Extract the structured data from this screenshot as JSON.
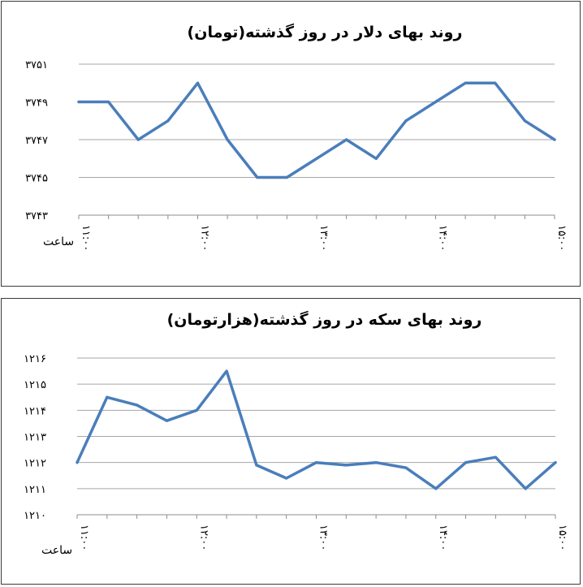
{
  "accent_color": "#4a7ebb",
  "chart_data": [
    {
      "type": "line",
      "title": "روند بهای دلار در روز گذشته(تومان)",
      "xlabel": "ساعت",
      "ylabel": "",
      "ylim": [
        3743,
        3751
      ],
      "yticks": [
        3743,
        3745,
        3747,
        3749,
        3751
      ],
      "ytick_labels": [
        "۳۷۴۳",
        "۳۷۴۵",
        "۳۷۴۷",
        "۳۷۴۹",
        "۳۷۵۱"
      ],
      "x": [
        "11:00",
        "11:15",
        "11:30",
        "11:45",
        "12:00",
        "12:15",
        "12:30",
        "12:45",
        "13:00",
        "13:15",
        "13:30",
        "13:45",
        "14:00",
        "14:15",
        "14:30",
        "14:45",
        "15:00"
      ],
      "xtick_labels": [
        "۱۱:۰۰",
        "۱۲:۰۰",
        "۱۳:۰۰",
        "۱۴:۰۰",
        "۱۵:۰۰"
      ],
      "xtick_positions": [
        0,
        4,
        8,
        12,
        16
      ],
      "series": [
        {
          "values": [
            3749,
            3749,
            3747,
            3748,
            3750,
            3747,
            3745,
            3745,
            3746,
            3747,
            3746,
            3748,
            3749,
            3750,
            3750,
            3748,
            3747
          ]
        }
      ],
      "grid": true,
      "legend": "none"
    },
    {
      "type": "line",
      "title": "روند بهای سکه در روز گذشته(هزارتومان)",
      "xlabel": "ساعت",
      "ylabel": "",
      "ylim": [
        1210,
        1216
      ],
      "yticks": [
        1210,
        1211,
        1212,
        1213,
        1214,
        1215,
        1216
      ],
      "ytick_labels": [
        "۱۲۱۰",
        "۱۲۱۱",
        "۱۲۱۲",
        "۱۲۱۳",
        "۱۲۱۴",
        "۱۲۱۵",
        "۱۲۱۶"
      ],
      "x": [
        "11:00",
        "11:15",
        "11:30",
        "11:45",
        "12:00",
        "12:15",
        "12:30",
        "12:45",
        "13:00",
        "13:15",
        "13:30",
        "13:45",
        "14:00",
        "14:15",
        "14:30",
        "14:45",
        "15:00"
      ],
      "xtick_labels": [
        "۱۱:۰۰",
        "۱۲:۰۰",
        "۱۳:۰۰",
        "۱۴:۰۰",
        "۱۵:۰۰"
      ],
      "xtick_positions": [
        0,
        4,
        8,
        12,
        16
      ],
      "series": [
        {
          "values": [
            1212,
            1214.5,
            1214.2,
            1213.6,
            1214,
            1215.5,
            1211.9,
            1211.4,
            1212,
            1211.9,
            1212,
            1211.8,
            1211,
            1212,
            1212.2,
            1211,
            1212
          ]
        }
      ],
      "grid": true,
      "legend": "none"
    }
  ]
}
